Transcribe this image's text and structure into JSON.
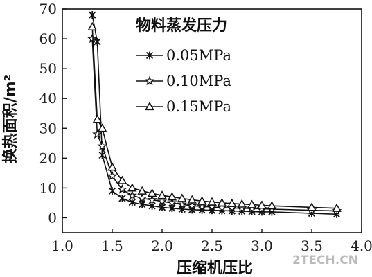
{
  "chart_data": {
    "type": "line",
    "xlabel": "压缩机压比",
    "ylabel": "换热面积/m²",
    "xlim": [
      1.0,
      4.0
    ],
    "ylim": [
      -5,
      70
    ],
    "xticks": [
      1.0,
      1.5,
      2.0,
      2.5,
      3.0,
      3.5,
      4.0
    ],
    "xtick_labels": [
      "1.0",
      "1.5",
      "2.0",
      "2.5",
      "3.0",
      "3.5",
      "4.0"
    ],
    "yticks": [
      0,
      10,
      20,
      30,
      40,
      50,
      60,
      70
    ],
    "ytick_labels": [
      "0",
      "10",
      "20",
      "30",
      "40",
      "50",
      "60",
      "70"
    ],
    "legend_title": "物料蒸发压力",
    "legend_position": "top-right",
    "grid": false,
    "series": [
      {
        "name": "0.05MPa",
        "marker": "x",
        "x": [
          1.3,
          1.35,
          1.4,
          1.5,
          1.6,
          1.7,
          1.8,
          1.9,
          2.0,
          2.1,
          2.2,
          2.3,
          2.4,
          2.5,
          2.6,
          2.7,
          2.8,
          2.9,
          3.0,
          3.1,
          3.5,
          3.75
        ],
        "values": [
          68.0,
          59.0,
          21.0,
          9.0,
          6.5,
          5.2,
          4.5,
          4.0,
          3.5,
          3.2,
          2.9,
          2.7,
          2.6,
          2.5,
          2.4,
          2.3,
          2.2,
          2.1,
          2.0,
          2.0,
          1.5,
          1.2
        ]
      },
      {
        "name": "0.10MPa",
        "marker": "star",
        "x": [
          1.3,
          1.35,
          1.4,
          1.5,
          1.6,
          1.7,
          1.8,
          1.9,
          2.0,
          2.1,
          2.2,
          2.3,
          2.4,
          2.5,
          2.6,
          2.7,
          2.8,
          2.9,
          3.0,
          3.1,
          3.5,
          3.75
        ],
        "values": [
          60.0,
          28.0,
          24.0,
          14.0,
          9.5,
          7.5,
          6.5,
          6.0,
          5.5,
          5.0,
          4.5,
          4.0,
          3.8,
          3.6,
          3.4,
          3.3,
          3.2,
          3.1,
          3.0,
          2.9,
          2.5,
          2.3
        ]
      },
      {
        "name": "0.15MPa",
        "marker": "triangle",
        "x": [
          1.3,
          1.35,
          1.4,
          1.5,
          1.6,
          1.7,
          1.8,
          1.9,
          2.0,
          2.1,
          2.2,
          2.3,
          2.4,
          2.5,
          2.6,
          2.7,
          2.8,
          2.9,
          3.0,
          3.1,
          3.5,
          3.75
        ],
        "values": [
          64.0,
          33.0,
          30.0,
          17.0,
          12.5,
          10.0,
          9.0,
          8.2,
          7.5,
          7.0,
          6.5,
          6.0,
          5.6,
          5.3,
          5.0,
          4.8,
          4.6,
          4.4,
          4.2,
          4.0,
          3.5,
          3.2
        ]
      }
    ]
  },
  "watermark": "2TECH.CN"
}
